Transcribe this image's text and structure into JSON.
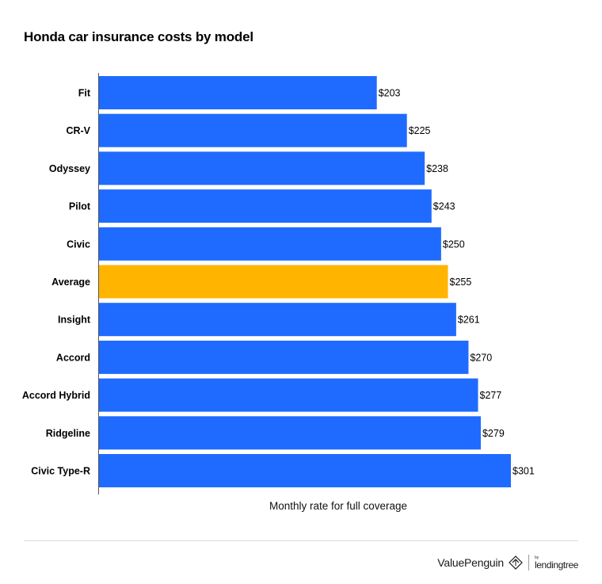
{
  "title": "Honda car insurance costs by model",
  "footer": {
    "brand": "ValuePenguin",
    "by": "by",
    "partner": "lendingtree"
  },
  "colors": {
    "bar": "#1f6bff",
    "highlight": "#ffb400",
    "axis": "#555555"
  },
  "chart_data": {
    "type": "bar",
    "orientation": "horizontal",
    "title": "Honda car insurance costs by model",
    "xlabel": "Monthly rate for full coverage",
    "ylabel": "",
    "categories": [
      "Fit",
      "CR-V",
      "Odyssey",
      "Pilot",
      "Civic",
      "Average",
      "Insight",
      "Accord",
      "Accord Hybrid",
      "Ridgeline",
      "Civic Type-R"
    ],
    "values": [
      203,
      225,
      238,
      243,
      250,
      255,
      261,
      270,
      277,
      279,
      301
    ],
    "value_labels": [
      "$203",
      "$225",
      "$238",
      "$243",
      "$250",
      "$255",
      "$261",
      "$270",
      "$277",
      "$279",
      "$301"
    ],
    "highlight": "Average",
    "xlim": [
      0,
      301
    ],
    "grid": false,
    "legend": "none"
  }
}
